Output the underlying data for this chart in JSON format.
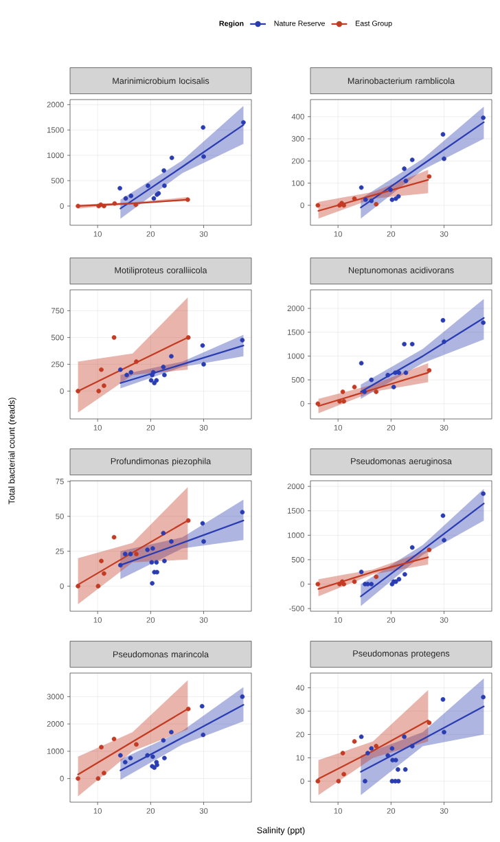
{
  "chart_data": [
    {
      "type": "scatter",
      "title": "Marinimicrobium locisalis",
      "legend_title": "Region",
      "legend": "top",
      "grid": true,
      "line_style": "solid",
      "xlim": [
        4.8,
        39
      ],
      "xticks": [
        10,
        20,
        30
      ],
      "ylim": [
        -380,
        2100
      ],
      "yticks": [
        0,
        500,
        1000,
        1500,
        2000
      ],
      "series": [
        {
          "name": "Nature Reserve",
          "color": "#2a3cb1",
          "marker": "circle",
          "x": [
            14.2,
            15.3,
            16.3,
            19.5,
            20.6,
            21.2,
            21.5,
            22.5,
            22.6,
            24.0,
            29.9,
            30.0,
            37.5
          ],
          "values": [
            350,
            150,
            200,
            400,
            150,
            225,
            250,
            700,
            400,
            950,
            1550,
            975,
            1650
          ]
        },
        {
          "name": "East Group",
          "color": "#c23b22",
          "marker": "circle",
          "x": [
            6.3,
            10.2,
            10.6,
            11.2,
            13.2,
            17.2,
            27.0
          ],
          "values": [
            0,
            0,
            25,
            0,
            50,
            25,
            125
          ]
        },
        {
          "type": "line",
          "marker": "none",
          "color": "#2a3cb1",
          "x": [
            14.3,
            26,
            37.5
          ],
          "values": [
            -50,
            775,
            1600
          ],
          "lower": [
            -250,
            650,
            1225
          ],
          "upper": [
            125,
            900,
            1975
          ]
        },
        {
          "type": "line",
          "marker": "none",
          "color": "#c23b22",
          "x": [
            6.3,
            16.6,
            27
          ],
          "values": [
            0,
            50,
            125
          ],
          "lower": [
            -50,
            50,
            100
          ],
          "upper": [
            25,
            75,
            175
          ]
        }
      ]
    },
    {
      "type": "scatter",
      "title": "Marinobacterium ramblicola",
      "grid": true,
      "line_style": "solid",
      "xlim": [
        4.8,
        39
      ],
      "xticks": [
        10,
        20,
        30
      ],
      "ylim": [
        -90,
        477
      ],
      "yticks": [
        0,
        100,
        200,
        300,
        400
      ],
      "series": [
        {
          "color": "#2a3cb1",
          "marker": "circle",
          "x": [
            14.4,
            15.2,
            16.3,
            19.9,
            20.2,
            20.9,
            21.4,
            22.5,
            22.8,
            24.0,
            29.8,
            30.0,
            37.4
          ],
          "values": [
            80,
            25,
            20,
            70,
            25,
            30,
            40,
            165,
            110,
            205,
            320,
            210,
            395
          ]
        },
        {
          "color": "#c23b22",
          "marker": "circle",
          "x": [
            6.2,
            10.3,
            10.7,
            11.1,
            13.1,
            17.2,
            27.2
          ],
          "values": [
            0,
            0,
            10,
            0,
            30,
            5,
            130
          ]
        },
        {
          "type": "line",
          "marker": "none",
          "color": "#2a3cb1",
          "x": [
            14.3,
            26,
            37.5
          ],
          "values": [
            -10,
            185,
            375
          ],
          "lower": [
            -60,
            160,
            300
          ],
          "upper": [
            30,
            210,
            445
          ]
        },
        {
          "type": "line",
          "marker": "none",
          "color": "#c23b22",
          "x": [
            6.3,
            16.6,
            27
          ],
          "values": [
            -25,
            45,
            115
          ],
          "lower": [
            -60,
            30,
            55
          ],
          "upper": [
            15,
            60,
            160
          ]
        }
      ]
    },
    {
      "type": "scatter",
      "title": "Motiliproteus coralliicola",
      "ylabel": "Total bacterial count (reads)",
      "grid": true,
      "line_style": "solid",
      "xlim": [
        4.8,
        39
      ],
      "xticks": [
        10,
        20,
        30
      ],
      "ylim": [
        -260,
        945
      ],
      "yticks": [
        0,
        250,
        500,
        750
      ],
      "series": [
        {
          "color": "#2a3cb1",
          "marker": "circle",
          "x": [
            14.3,
            15.5,
            16.3,
            20.1,
            20.3,
            20.5,
            20.7,
            21.1,
            22.4,
            22.6,
            23.9,
            29.8,
            30.0,
            37.3
          ],
          "values": [
            200,
            150,
            175,
            100,
            150,
            175,
            75,
            100,
            225,
            150,
            325,
            425,
            250,
            475
          ]
        },
        {
          "color": "#c23b22",
          "marker": "circle",
          "x": [
            6.3,
            10.2,
            10.7,
            11.2,
            13.1,
            17.3,
            27.1
          ],
          "values": [
            0,
            0,
            200,
            50,
            500,
            275,
            500
          ]
        },
        {
          "type": "line",
          "marker": "none",
          "color": "#2a3cb1",
          "x": [
            14.3,
            26,
            37.5
          ],
          "values": [
            75,
            250,
            425
          ],
          "lower": [
            25,
            225,
            325
          ],
          "upper": [
            150,
            275,
            525
          ]
        },
        {
          "type": "line",
          "marker": "none",
          "color": "#c23b22",
          "x": [
            6.3,
            16.6,
            27
          ],
          "values": [
            0,
            250,
            500
          ],
          "lower": [
            -200,
            150,
            200
          ],
          "upper": [
            275,
            350,
            875
          ]
        }
      ]
    },
    {
      "type": "scatter",
      "title": "Neptunomonas acidivorans",
      "grid": true,
      "line_style": "solid",
      "xlim": [
        4.8,
        39
      ],
      "xticks": [
        10,
        20,
        30
      ],
      "ylim": [
        -320,
        2390
      ],
      "yticks": [
        0,
        500,
        1000,
        1500,
        2000
      ],
      "series": [
        {
          "color": "#2a3cb1",
          "marker": "circle",
          "x": [
            14.4,
            15.0,
            16.3,
            19.4,
            20.5,
            20.8,
            21.5,
            22.5,
            22.8,
            24.0,
            29.8,
            30.0,
            37.4
          ],
          "values": [
            850,
            250,
            500,
            600,
            350,
            650,
            650,
            1250,
            650,
            1250,
            1750,
            1300,
            1700
          ]
        },
        {
          "color": "#c23b22",
          "marker": "circle",
          "x": [
            6.2,
            10.3,
            10.9,
            11.1,
            13.1,
            17.2,
            27.2
          ],
          "values": [
            0,
            50,
            250,
            50,
            350,
            250,
            700
          ]
        },
        {
          "type": "line",
          "marker": "none",
          "color": "#2a3cb1",
          "x": [
            14.3,
            26,
            37.5
          ],
          "values": [
            250,
            1000,
            1800
          ],
          "lower": [
            100,
            850,
            1350
          ],
          "upper": [
            400,
            1150,
            2200
          ]
        },
        {
          "type": "line",
          "marker": "none",
          "color": "#c23b22",
          "x": [
            6.3,
            16.6,
            27
          ],
          "values": [
            -50,
            300,
            650
          ],
          "lower": [
            -200,
            250,
            450
          ],
          "upper": [
            100,
            400,
            850
          ]
        }
      ]
    },
    {
      "type": "scatter",
      "title": "Profundimonas piezophila",
      "grid": true,
      "line_style": "solid",
      "xlim": [
        4.8,
        39
      ],
      "xticks": [
        10,
        20,
        30
      ],
      "ylim": [
        -18,
        75.5
      ],
      "yticks": [
        0,
        25,
        50,
        75
      ],
      "series": [
        {
          "color": "#2a3cb1",
          "marker": "circle",
          "x": [
            14.3,
            15.2,
            16.2,
            19.4,
            20.2,
            20.3,
            20.4,
            20.7,
            21.1,
            21.2,
            22.4,
            22.6,
            23.9,
            29.8,
            30.0,
            37.3
          ],
          "values": [
            15,
            23,
            23,
            26,
            17,
            2,
            27,
            10,
            17,
            10,
            38,
            18,
            32,
            45,
            32,
            53
          ]
        },
        {
          "color": "#c23b22",
          "marker": "circle",
          "x": [
            6.3,
            10.1,
            10.7,
            11.2,
            13.1,
            17.3,
            27.1
          ],
          "values": [
            0,
            0,
            18,
            9,
            35,
            23,
            47
          ]
        },
        {
          "type": "line",
          "marker": "none",
          "color": "#2a3cb1",
          "x": [
            14.3,
            26,
            37.5
          ],
          "values": [
            15,
            31,
            47
          ],
          "lower": [
            5,
            27,
            33
          ],
          "upper": [
            25,
            35,
            62
          ]
        },
        {
          "type": "line",
          "marker": "none",
          "color": "#c23b22",
          "x": [
            6.3,
            16.6,
            27
          ],
          "values": [
            1,
            24,
            47
          ],
          "lower": [
            -13,
            17,
            19
          ],
          "upper": [
            20,
            31,
            71
          ]
        }
      ]
    },
    {
      "type": "scatter",
      "title": "Pseudomonas aeruginosa",
      "grid": true,
      "line_style": "solid",
      "xlim": [
        4.8,
        39
      ],
      "xticks": [
        10,
        20,
        30
      ],
      "ylim": [
        -555,
        2115
      ],
      "yticks": [
        -500,
        0,
        500,
        1000,
        1500,
        2000
      ],
      "series": [
        {
          "color": "#2a3cb1",
          "marker": "circle",
          "x": [
            14.4,
            15.1,
            15.6,
            16.3,
            20.2,
            20.5,
            20.9,
            21.5,
            22.6,
            24.0,
            29.8,
            30.0,
            37.4
          ],
          "values": [
            250,
            0,
            0,
            0,
            0,
            50,
            50,
            100,
            200,
            750,
            1400,
            900,
            1850
          ]
        },
        {
          "color": "#c23b22",
          "marker": "circle",
          "x": [
            6.2,
            10.3,
            10.8,
            11.1,
            13.1,
            17.2,
            27.2
          ],
          "values": [
            0,
            0,
            50,
            0,
            50,
            150,
            700
          ]
        },
        {
          "type": "line",
          "marker": "none",
          "color": "#2a3cb1",
          "x": [
            14.3,
            26,
            37.5
          ],
          "values": [
            -250,
            700,
            1650
          ],
          "lower": [
            -450,
            600,
            1300
          ],
          "upper": [
            0,
            800,
            1950
          ]
        },
        {
          "type": "line",
          "marker": "none",
          "color": "#c23b22",
          "x": [
            6.3,
            16.6,
            27
          ],
          "values": [
            -100,
            250,
            550
          ],
          "lower": [
            -250,
            200,
            400
          ],
          "upper": [
            100,
            300,
            700
          ]
        }
      ]
    },
    {
      "type": "scatter",
      "title": "Pseudomonas marincola",
      "xlabel": "Salinity (ppt)",
      "grid": true,
      "line_style": "solid",
      "xlim": [
        4.8,
        39
      ],
      "xticks": [
        10,
        20,
        30
      ],
      "ylim": [
        -865,
        3865
      ],
      "yticks": [
        0,
        1000,
        2000,
        3000
      ],
      "series": [
        {
          "color": "#2a3cb1",
          "marker": "circle",
          "x": [
            14.3,
            15.2,
            16.2,
            19.4,
            20.3,
            20.4,
            20.7,
            21.1,
            21.2,
            22.4,
            22.6,
            23.9,
            29.7,
            29.9,
            37.3
          ],
          "values": [
            850,
            600,
            750,
            850,
            450,
            800,
            400,
            600,
            500,
            1400,
            750,
            1700,
            2650,
            1600,
            3000
          ]
        },
        {
          "color": "#c23b22",
          "marker": "circle",
          "x": [
            6.3,
            10.1,
            10.7,
            11.2,
            13.1,
            17.3,
            27.1
          ],
          "values": [
            0,
            0,
            1150,
            200,
            1450,
            1250,
            2550
          ]
        },
        {
          "type": "line",
          "marker": "none",
          "color": "#2a3cb1",
          "x": [
            14.3,
            26,
            37.5
          ],
          "values": [
            300,
            1500,
            2700
          ],
          "lower": [
            -50,
            1250,
            2100
          ],
          "upper": [
            700,
            1750,
            3350
          ]
        },
        {
          "type": "line",
          "marker": "none",
          "color": "#c23b22",
          "x": [
            6.3,
            16.6,
            27
          ],
          "values": [
            150,
            1350,
            2550
          ],
          "lower": [
            -650,
            1000,
            1800
          ],
          "upper": [
            800,
            1700,
            3600
          ]
        }
      ]
    },
    {
      "type": "scatter",
      "title": "Pseudomonas protegens",
      "grid": true,
      "line_style": "solid",
      "xlim": [
        4.8,
        39
      ],
      "xticks": [
        10,
        20,
        30
      ],
      "ylim": [
        -9,
        46.3
      ],
      "yticks": [
        0,
        10,
        20,
        30,
        40
      ],
      "series": [
        {
          "color": "#2a3cb1",
          "marker": "circle",
          "x": [
            14.4,
            15.1,
            15.6,
            16.3,
            19.4,
            20.2,
            20.3,
            20.9,
            20.2,
            20.8,
            21.4,
            21.3,
            22.7,
            22.5,
            24.0,
            29.8,
            30.0,
            37.4
          ],
          "values": [
            19,
            0,
            12,
            14,
            11,
            14,
            9,
            9,
            0,
            0,
            0,
            5,
            5,
            19,
            15,
            35,
            21,
            36
          ]
        },
        {
          "color": "#c23b22",
          "marker": "circle",
          "x": [
            6.2,
            10.1,
            10.9,
            11.1,
            13.1,
            17.2,
            27.2
          ],
          "values": [
            0,
            0,
            12,
            3,
            17,
            15,
            25
          ]
        },
        {
          "type": "line",
          "marker": "none",
          "color": "#2a3cb1",
          "x": [
            14.3,
            26,
            37.5
          ],
          "values": [
            4,
            18,
            32
          ],
          "lower": [
            -6,
            15,
            20
          ],
          "upper": [
            11,
            21,
            44
          ]
        },
        {
          "type": "line",
          "marker": "none",
          "color": "#c23b22",
          "x": [
            6.3,
            16.6,
            27
          ],
          "values": [
            1,
            13,
            26
          ],
          "lower": [
            -6,
            10,
            17
          ],
          "upper": [
            9,
            17,
            39
          ]
        }
      ]
    }
  ]
}
